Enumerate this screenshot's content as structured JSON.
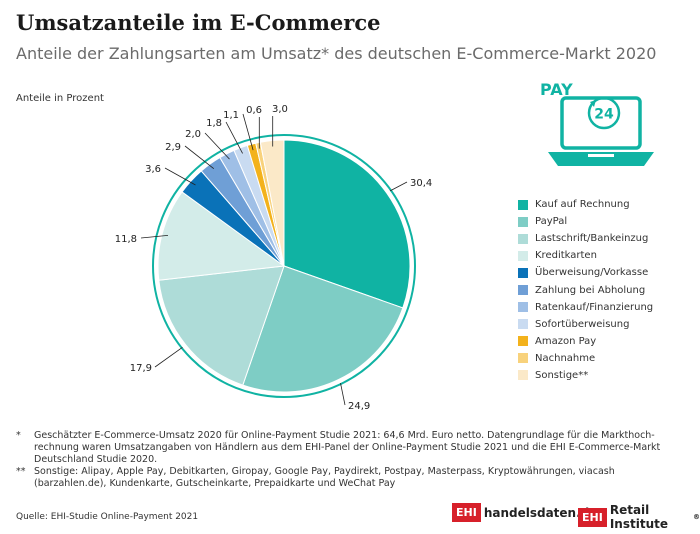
{
  "title": "Umsatzanteile im E-Commerce",
  "subtitle": "Anteile der Zahlungsarten am Umsatz* des deutschen E-Commerce-Markt 2020",
  "unit_label": "Anteile in Prozent",
  "icon": {
    "name": "pay-24-laptop-icon",
    "text": "PAY",
    "number": "24"
  },
  "chart_data": {
    "type": "pie",
    "categories": [
      "Kauf auf Rechnung",
      "PayPal",
      "Lastschrift/Bankeinzug",
      "Kreditkarten",
      "Überweisung/Vorkasse",
      "Zahlung bei Abholung",
      "Ratenkauf/Finanzierung",
      "Sofortüberweisung",
      "Amazon Pay",
      "Nachnahme",
      "Sonstige**"
    ],
    "values": [
      30.4,
      24.9,
      17.9,
      11.8,
      3.6,
      2.9,
      2.0,
      1.8,
      1.1,
      0.6,
      3.0
    ],
    "value_labels": [
      "30,4",
      "24,9",
      "17,9",
      "11,8",
      "3,6",
      "2,9",
      "2,0",
      "1,8",
      "1,1",
      "0,6",
      "3,0"
    ],
    "colors": [
      "#10b3a3",
      "#7ecdc5",
      "#aedcd8",
      "#d3ece9",
      "#0a72b8",
      "#6f9fd6",
      "#9fbfe6",
      "#c9dbf1",
      "#f3b21c",
      "#f8d27c",
      "#fbe9c8"
    ],
    "legend_placement": "right"
  },
  "footnotes": [
    {
      "mark": "*",
      "text": "Geschätzter E-Commerce-Umsatz 2020 für Online-Payment Studie 2021: 64,6 Mrd. Euro netto. Datengrundlage für die Markthoch-rechnung waren Umsatzangaben von Händlern aus dem EHI-Panel der Online-Payment Studie 2021 und die EHI E-Commerce-Markt Deutschland Studie 2020."
    },
    {
      "mark": "**",
      "text": "Sonstige: Alipay, Apple Pay, Debitkarten, Giropay, Google Pay, Paydirekt, Postpay, Masterpass, Kryptowährungen, viacash (barzahlen.de), Kundenkarte, Gutscheinkarte, Prepaidkarte und WeChat Pay"
    }
  ],
  "source": "Quelle: EHI-Studie Online-Payment 2021",
  "logos": {
    "logo1_box": "EHI",
    "logo1_text": "handelsdaten.de",
    "logo2_box": "EHI",
    "logo2_text": "Retail Institute",
    "logo2_reg": "®"
  }
}
